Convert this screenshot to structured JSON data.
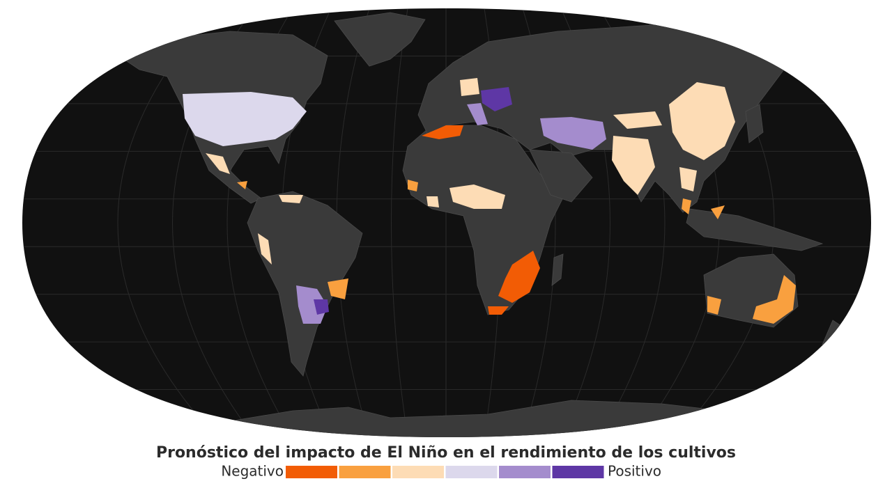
{
  "title": "Pronóstico del impacto de El Niño en el rendimiento de los cultivos",
  "legend": {
    "low_label": "Negativo",
    "high_label": "Positivo",
    "colors": [
      "#f25c05",
      "#f9a03f",
      "#fddcb5",
      "#dcd8ec",
      "#a48ccd",
      "#5e37a5"
    ]
  }
}
